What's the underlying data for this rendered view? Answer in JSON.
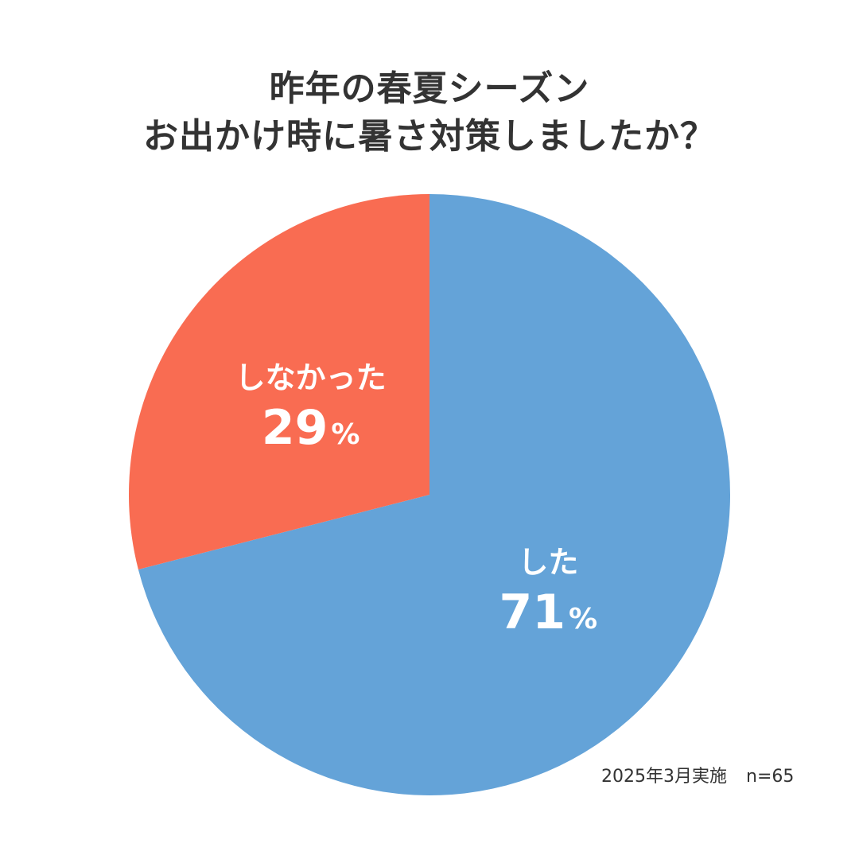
{
  "chart_data": {
    "type": "pie",
    "title": [
      "昨年の春夏シーズン",
      "お出かけ時に暑さ対策しましたか？"
    ],
    "slices": [
      {
        "label": "した",
        "value": 71,
        "value_label": "71",
        "unit": "%",
        "color": "#64a3d8"
      },
      {
        "label": "しなかった",
        "value": 29,
        "value_label": "29",
        "unit": "%",
        "color": "#f96c52"
      }
    ],
    "start_angle_deg": 0,
    "direction": "clockwise",
    "label_color": "#ffffff"
  },
  "footnote": {
    "date": "2025年3月実施",
    "sample": "n=65"
  }
}
